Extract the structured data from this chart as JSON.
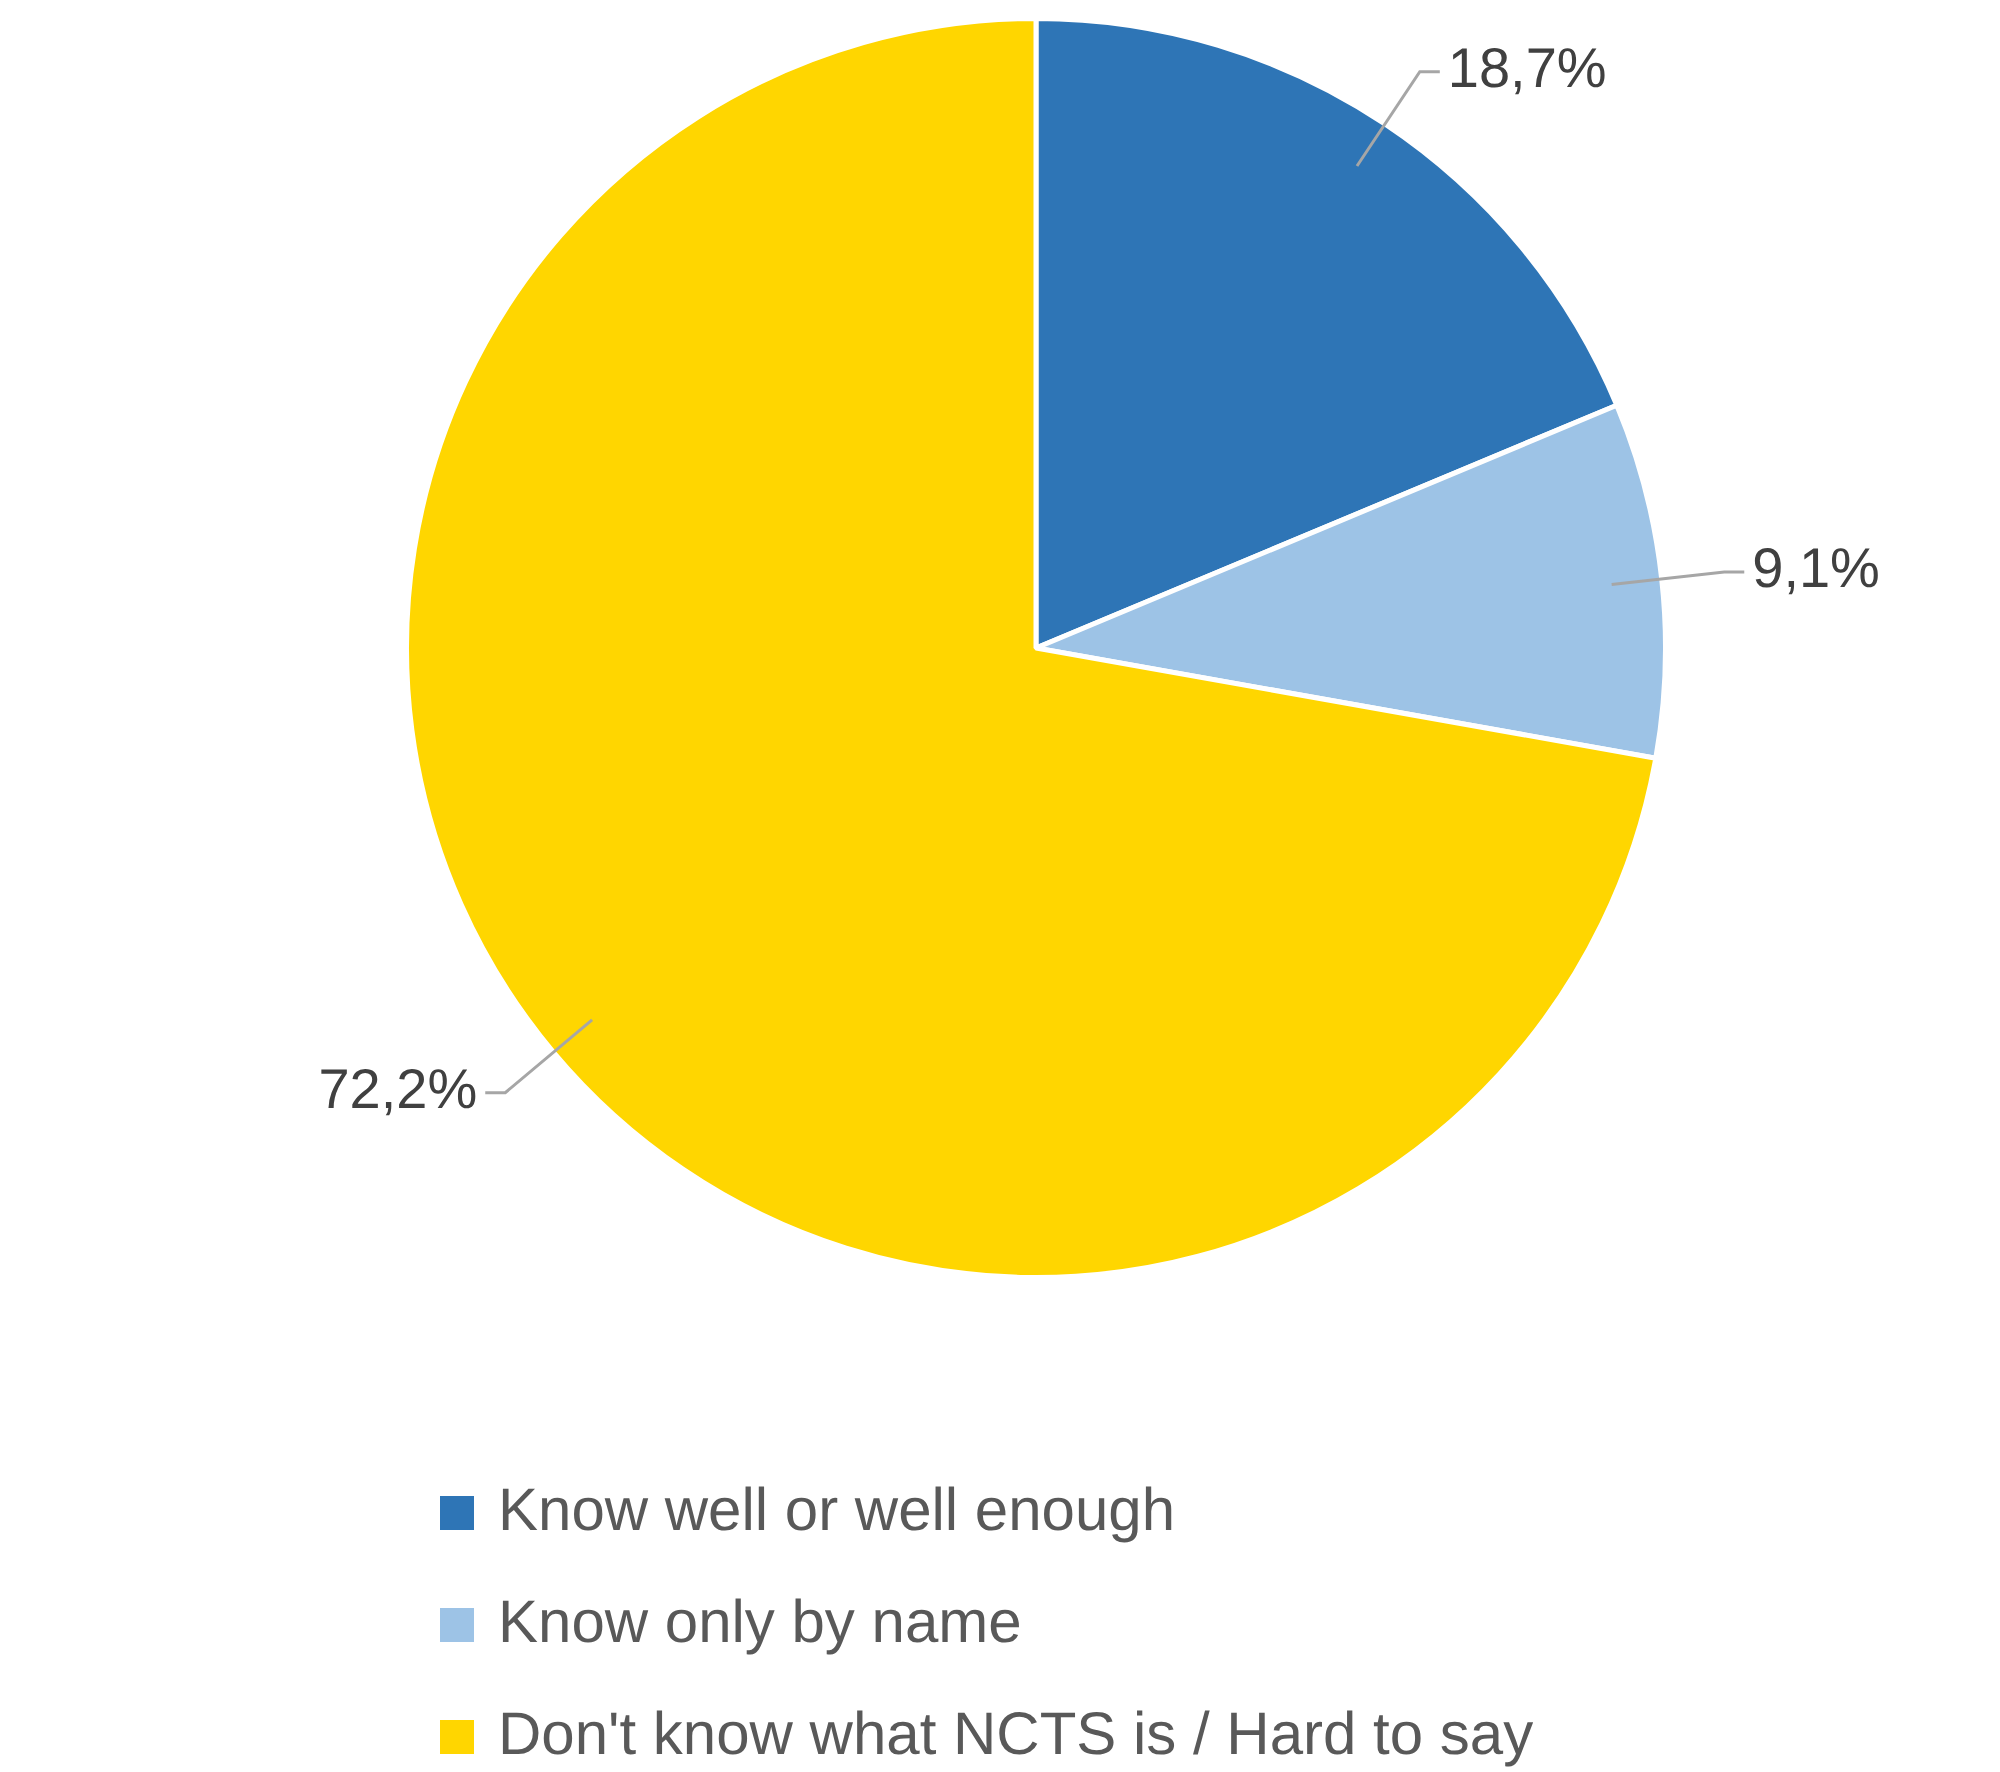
{
  "chart_data": {
    "type": "pie",
    "categories": [
      "Know well or well enough",
      "Know only by name",
      "Don't know what NCTS is / Hard to say"
    ],
    "values": [
      18.7,
      9.1,
      72.2
    ],
    "colors": [
      "#2e75b6",
      "#9dc3e6",
      "#ffd600"
    ],
    "value_labels": [
      "18,7%",
      "9,1%",
      "72,2%"
    ],
    "legend": "bottom"
  }
}
